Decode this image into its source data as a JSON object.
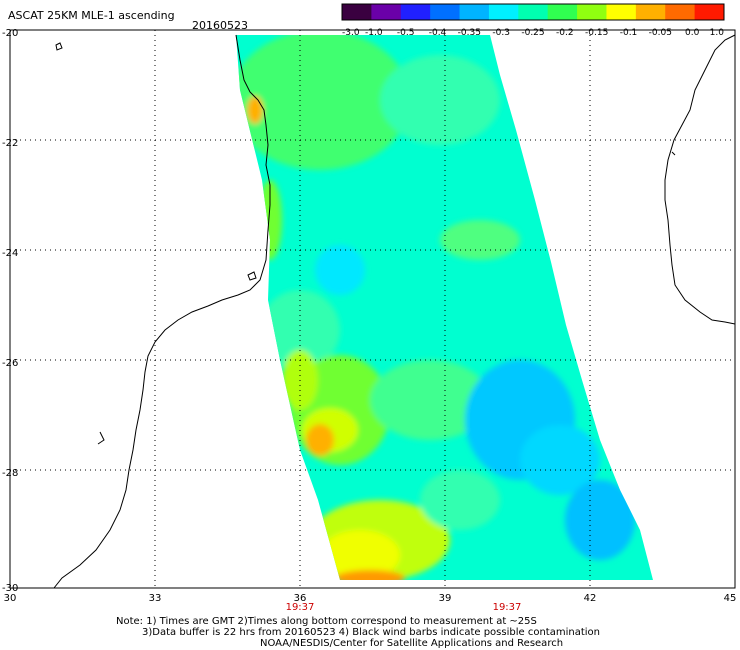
{
  "header": {
    "title": "ASCAT 25KM MLE-1 ascending",
    "date": "20160523"
  },
  "colorbar": {
    "tick_labels": [
      "-3.0",
      "-1.0",
      "-0.5",
      "-0.4",
      "-0.35",
      "-0.3",
      "-0.25",
      "-0.2",
      "-0.15",
      "-0.1",
      "-0.05",
      "0.0",
      "1.0"
    ],
    "colors": [
      "#3a0040",
      "#6a00a8",
      "#2020ff",
      "#0070ff",
      "#00b4ff",
      "#00f0ff",
      "#00ffb0",
      "#30ff50",
      "#90ff10",
      "#ffff00",
      "#ffb000",
      "#ff6a00",
      "#ff1a00"
    ]
  },
  "map": {
    "lat_range": [
      -30,
      -20
    ],
    "lon_range": [
      30,
      45
    ],
    "lat_ticks": [
      "-20",
      "-22",
      "-24",
      "-26",
      "-28",
      "-30"
    ],
    "lon_ticks": [
      "30",
      "33",
      "36",
      "39",
      "42",
      "45"
    ],
    "time_labels": [
      {
        "lon": 36,
        "text": "19:37"
      },
      {
        "lon": 40.3,
        "text": "19:37"
      }
    ],
    "colors": {
      "time_label": "#cc0000",
      "grid": "#000000",
      "coast": "#000000"
    }
  },
  "notes": {
    "line1": "Note: 1) Times are GMT 2)Times along bottom correspond to measurement at ~25S",
    "line2": "3)Data buffer is 22 hrs from 20160523 4) Black wind barbs indicate possible contamination",
    "line3": "NOAA/NESDIS/Center for Satellite Applications and Research"
  }
}
